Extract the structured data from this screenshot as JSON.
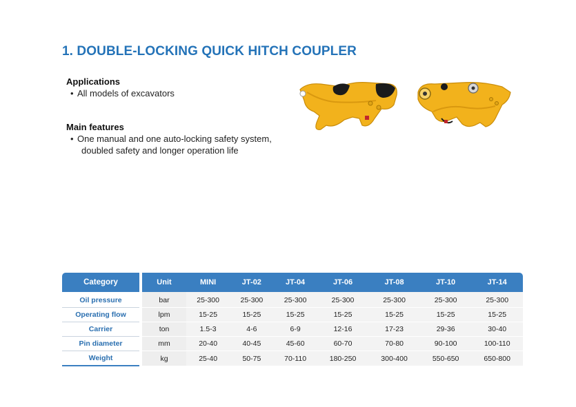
{
  "title": "1. DOUBLE-LOCKING QUICK HITCH COUPLER",
  "applications": {
    "heading": "Applications",
    "items": [
      "All models of excavators"
    ]
  },
  "main_features": {
    "heading": "Main features",
    "items": [
      {
        "line1": "One manual and one auto-locking safety system,",
        "line2": "doubled safety and longer operation life"
      }
    ]
  },
  "images": [
    {
      "name": "quick-hitch-coupler-side-view",
      "color": "#f2b21c"
    },
    {
      "name": "quick-hitch-coupler-angled-view",
      "color": "#f2b21c"
    }
  ],
  "colors": {
    "title": "#2473b8",
    "header_bg": "#3a7fc1",
    "category_text": "#2a6fb0",
    "product": "#f2b21c"
  },
  "table": {
    "headers": [
      "Category",
      "Unit",
      "MINI",
      "JT-02",
      "JT-04",
      "JT-06",
      "JT-08",
      "JT-10",
      "JT-14"
    ],
    "rows": [
      {
        "category": "Oil pressure",
        "unit": "bar",
        "values": [
          "25-300",
          "25-300",
          "25-300",
          "25-300",
          "25-300",
          "25-300",
          "25-300"
        ]
      },
      {
        "category": "Operating flow",
        "unit": "lpm",
        "values": [
          "15-25",
          "15-25",
          "15-25",
          "15-25",
          "15-25",
          "15-25",
          "15-25"
        ]
      },
      {
        "category": "Carrier",
        "unit": "ton",
        "values": [
          "1.5-3",
          "4-6",
          "6-9",
          "12-16",
          "17-23",
          "29-36",
          "30-40"
        ]
      },
      {
        "category": "Pin diameter",
        "unit": "mm",
        "values": [
          "20-40",
          "40-45",
          "45-60",
          "60-70",
          "70-80",
          "90-100",
          "100-110"
        ]
      },
      {
        "category": "Weight",
        "unit": "kg",
        "values": [
          "25-40",
          "50-75",
          "70-110",
          "180-250",
          "300-400",
          "550-650",
          "650-800"
        ]
      }
    ]
  }
}
